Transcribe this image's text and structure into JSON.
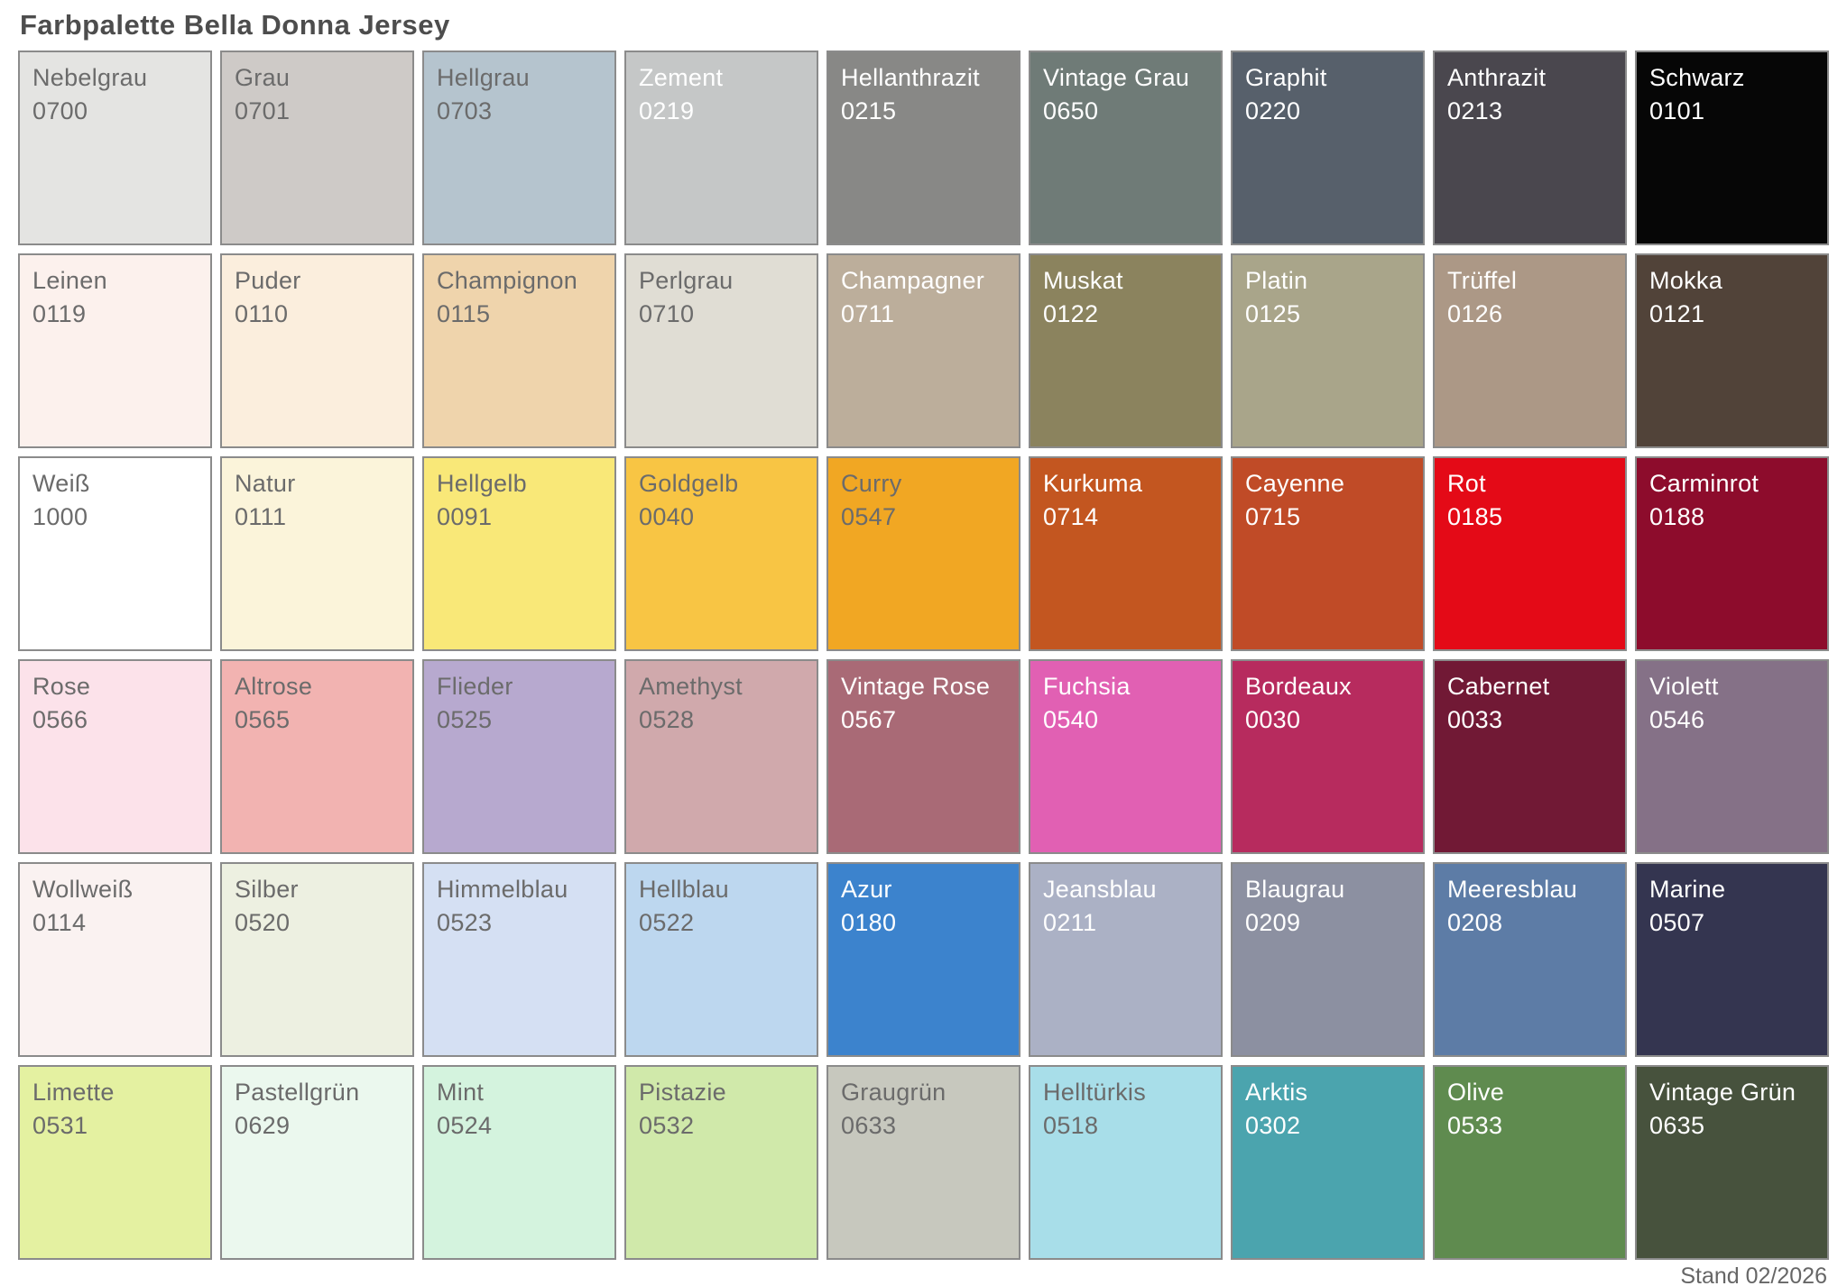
{
  "title": "Farbpalette Bella Donna Jersey",
  "footer": "Stand 02/2026",
  "colors": {
    "background": "#ffffff",
    "title_text": "#4d4d4d",
    "swatch_border": "#8b8b8b",
    "label_dark": "#6b6b6b",
    "label_light": "#ffffff",
    "footer_text": "#666666"
  },
  "chart_data": {
    "type": "table",
    "title": "Farbpalette Bella Donna Jersey",
    "columns": 9,
    "rows": [
      [
        {
          "name": "Nebelgrau",
          "code": "0700",
          "hex": "#e4e4e2",
          "text_color": "dark"
        },
        {
          "name": "Grau",
          "code": "0701",
          "hex": "#cecac7",
          "text_color": "dark"
        },
        {
          "name": "Hellgrau",
          "code": "0703",
          "hex": "#b5c4ce",
          "text_color": "dark"
        },
        {
          "name": "Zement",
          "code": "0219",
          "hex": "#c5c7c7",
          "text_color": "light"
        },
        {
          "name": "Hellanthrazit",
          "code": "0215",
          "hex": "#888886",
          "text_color": "light"
        },
        {
          "name": "Vintage Grau",
          "code": "0650",
          "hex": "#6f7b77",
          "text_color": "light"
        },
        {
          "name": "Graphit",
          "code": "0220",
          "hex": "#57606b",
          "text_color": "light"
        },
        {
          "name": "Anthrazit",
          "code": "0213",
          "hex": "#4a474e",
          "text_color": "light"
        },
        {
          "name": "Schwarz",
          "code": "0101",
          "hex": "#060606",
          "text_color": "light"
        }
      ],
      [
        {
          "name": "Leinen",
          "code": "0119",
          "hex": "#fcf1ed",
          "text_color": "dark"
        },
        {
          "name": "Puder",
          "code": "0110",
          "hex": "#fbeedd",
          "text_color": "dark"
        },
        {
          "name": "Champignon",
          "code": "0115",
          "hex": "#efd4ac",
          "text_color": "dark"
        },
        {
          "name": "Perlgrau",
          "code": "0710",
          "hex": "#e0ddd4",
          "text_color": "dark"
        },
        {
          "name": "Champagner",
          "code": "0711",
          "hex": "#bcae9b",
          "text_color": "light"
        },
        {
          "name": "Muskat",
          "code": "0122",
          "hex": "#8b835e",
          "text_color": "light"
        },
        {
          "name": "Platin",
          "code": "0125",
          "hex": "#a9a58a",
          "text_color": "light"
        },
        {
          "name": "Trüffel",
          "code": "0126",
          "hex": "#ac9886",
          "text_color": "light"
        },
        {
          "name": "Mokka",
          "code": "0121",
          "hex": "#514339",
          "text_color": "light"
        }
      ],
      [
        {
          "name": "Weiß",
          "code": "1000",
          "hex": "#ffffff",
          "text_color": "dark"
        },
        {
          "name": "Natur",
          "code": "0111",
          "hex": "#fbf4da",
          "text_color": "dark"
        },
        {
          "name": "Hellgelb",
          "code": "0091",
          "hex": "#f9e878",
          "text_color": "dark"
        },
        {
          "name": "Goldgelb",
          "code": "0040",
          "hex": "#f8c544",
          "text_color": "dark"
        },
        {
          "name": "Curry",
          "code": "0547",
          "hex": "#f1a723",
          "text_color": "dark"
        },
        {
          "name": "Kurkuma",
          "code": "0714",
          "hex": "#c35620",
          "text_color": "light"
        },
        {
          "name": "Cayenne",
          "code": "0715",
          "hex": "#c04b27",
          "text_color": "light"
        },
        {
          "name": "Rot",
          "code": "0185",
          "hex": "#e40a17",
          "text_color": "light"
        },
        {
          "name": "Carminrot",
          "code": "0188",
          "hex": "#8d0c2c",
          "text_color": "light"
        }
      ],
      [
        {
          "name": "Rose",
          "code": "0566",
          "hex": "#fce2ea",
          "text_color": "dark"
        },
        {
          "name": "Altrose",
          "code": "0565",
          "hex": "#f2b3b1",
          "text_color": "dark"
        },
        {
          "name": "Flieder",
          "code": "0525",
          "hex": "#b7a9cf",
          "text_color": "dark"
        },
        {
          "name": "Amethyst",
          "code": "0528",
          "hex": "#d0a9ac",
          "text_color": "dark"
        },
        {
          "name": "Vintage Rose",
          "code": "0567",
          "hex": "#a96a76",
          "text_color": "light"
        },
        {
          "name": "Fuchsia",
          "code": "0540",
          "hex": "#e160b3",
          "text_color": "light"
        },
        {
          "name": "Bordeaux",
          "code": "0030",
          "hex": "#b72b5e",
          "text_color": "light"
        },
        {
          "name": "Cabernet",
          "code": "0033",
          "hex": "#711935",
          "text_color": "light"
        },
        {
          "name": "Violett",
          "code": "0546",
          "hex": "#857187",
          "text_color": "light"
        }
      ],
      [
        {
          "name": "Wollweiß",
          "code": "0114",
          "hex": "#faf2f1",
          "text_color": "dark"
        },
        {
          "name": "Silber",
          "code": "0520",
          "hex": "#edf0e1",
          "text_color": "dark"
        },
        {
          "name": "Himmelblau",
          "code": "0523",
          "hex": "#d5e0f3",
          "text_color": "dark"
        },
        {
          "name": "Hellblau",
          "code": "0522",
          "hex": "#bdd7ef",
          "text_color": "dark"
        },
        {
          "name": "Azur",
          "code": "0180",
          "hex": "#3c83cd",
          "text_color": "light"
        },
        {
          "name": "Jeansblau",
          "code": "0211",
          "hex": "#abb1c5",
          "text_color": "light"
        },
        {
          "name": "Blaugrau",
          "code": "0209",
          "hex": "#8c90a1",
          "text_color": "light"
        },
        {
          "name": "Meeresblau",
          "code": "0208",
          "hex": "#5d7ca6",
          "text_color": "light"
        },
        {
          "name": "Marine",
          "code": "0507",
          "hex": "#343550",
          "text_color": "light"
        }
      ],
      [
        {
          "name": "Limette",
          "code": "0531",
          "hex": "#e4f1a1",
          "text_color": "dark"
        },
        {
          "name": "Pastellgrün",
          "code": "0629",
          "hex": "#ebf8ee",
          "text_color": "dark"
        },
        {
          "name": "Mint",
          "code": "0524",
          "hex": "#d4f3de",
          "text_color": "dark"
        },
        {
          "name": "Pistazie",
          "code": "0532",
          "hex": "#d0e9aa",
          "text_color": "dark"
        },
        {
          "name": "Graugrün",
          "code": "0633",
          "hex": "#c7c8be",
          "text_color": "dark"
        },
        {
          "name": "Helltürkis",
          "code": "0518",
          "hex": "#a8dee9",
          "text_color": "dark"
        },
        {
          "name": "Arktis",
          "code": "0302",
          "hex": "#4ba4ae",
          "text_color": "light"
        },
        {
          "name": "Olive",
          "code": "0533",
          "hex": "#5f8b4f",
          "text_color": "light"
        },
        {
          "name": "Vintage Grün",
          "code": "0635",
          "hex": "#47523d",
          "text_color": "light"
        }
      ]
    ]
  }
}
